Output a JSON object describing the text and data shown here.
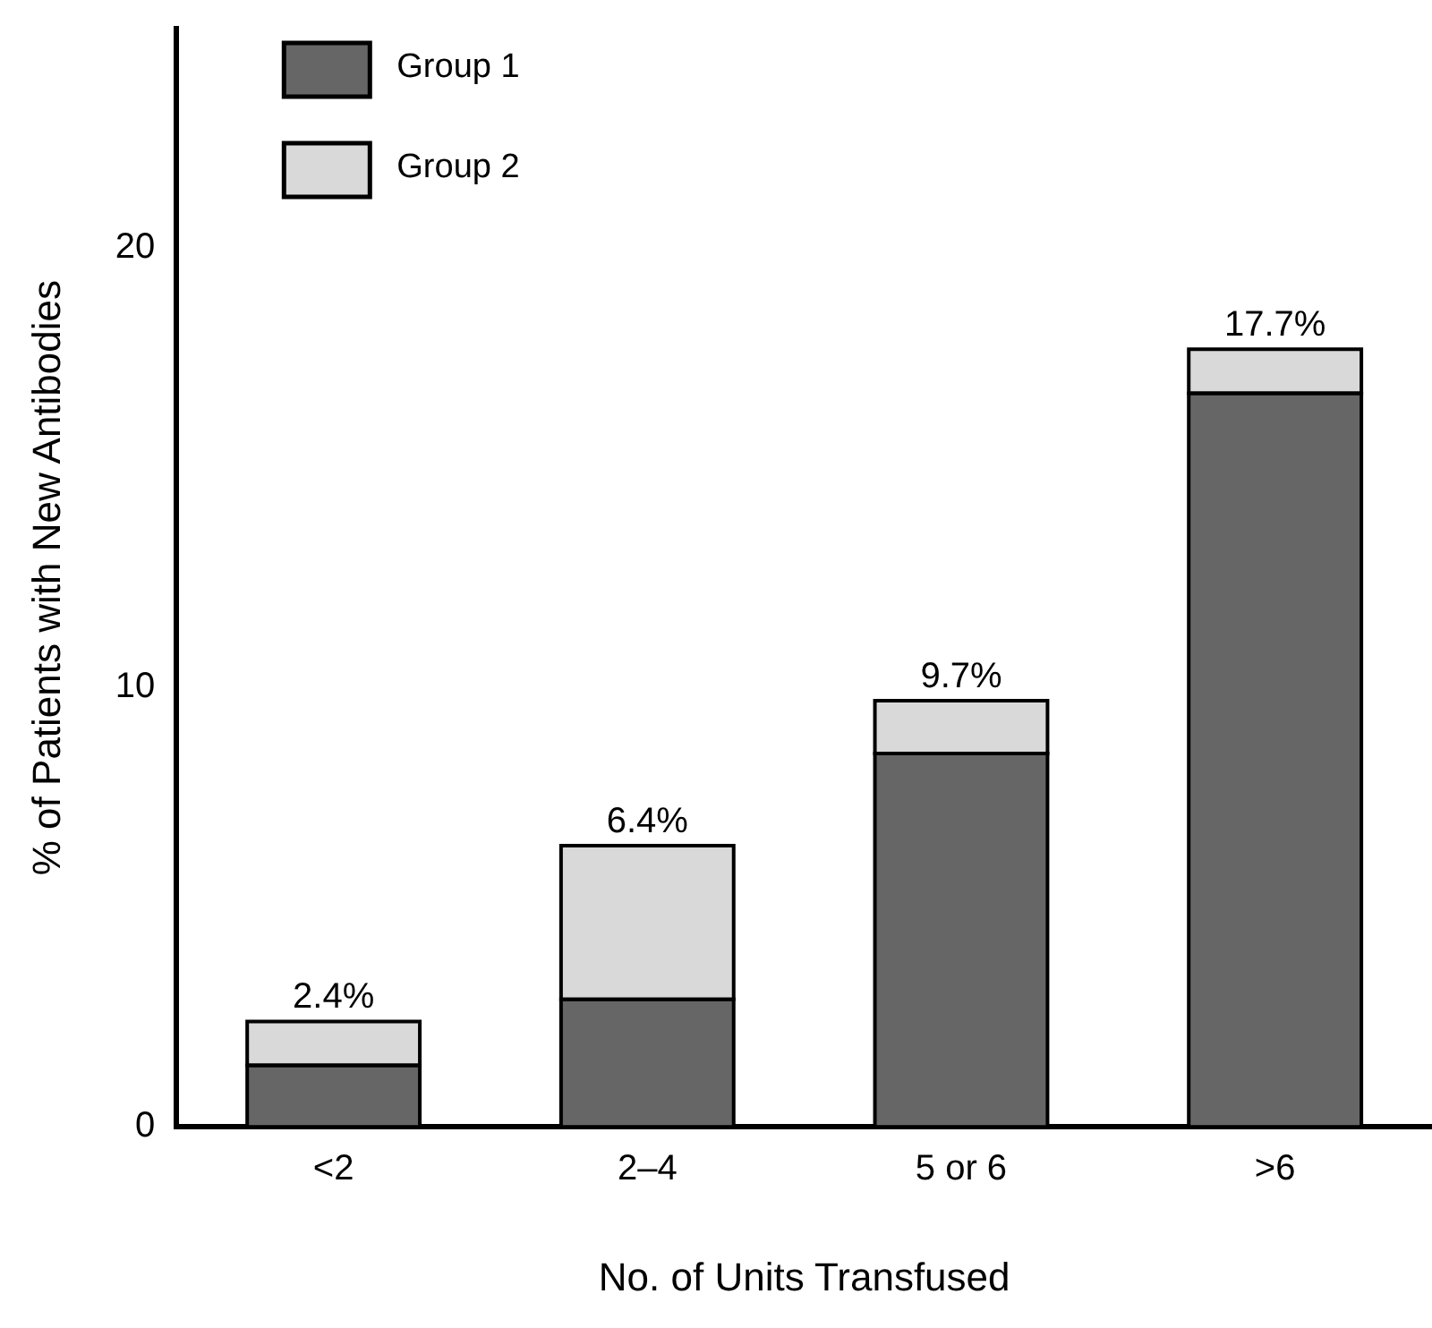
{
  "chart_data": {
    "type": "bar",
    "stacked": true,
    "xlabel": "No. of Units Transfused",
    "ylabel": "% of Patients with New Antibodies",
    "categories": [
      "<2",
      "2–4",
      "5 or 6",
      ">6"
    ],
    "series": [
      {
        "name": "Group 1",
        "color": "#666666",
        "values": [
          1.4,
          2.9,
          8.5,
          16.7
        ]
      },
      {
        "name": "Group 2",
        "color": "#d9d9d9",
        "values": [
          1.0,
          3.5,
          1.2,
          1.0
        ]
      }
    ],
    "totals": [
      "2.4%",
      "6.4%",
      "9.7%",
      "17.7%"
    ],
    "ylim": [
      0,
      25
    ],
    "yticks": [
      0,
      10,
      20
    ],
    "grid": false,
    "legend": "top left"
  }
}
